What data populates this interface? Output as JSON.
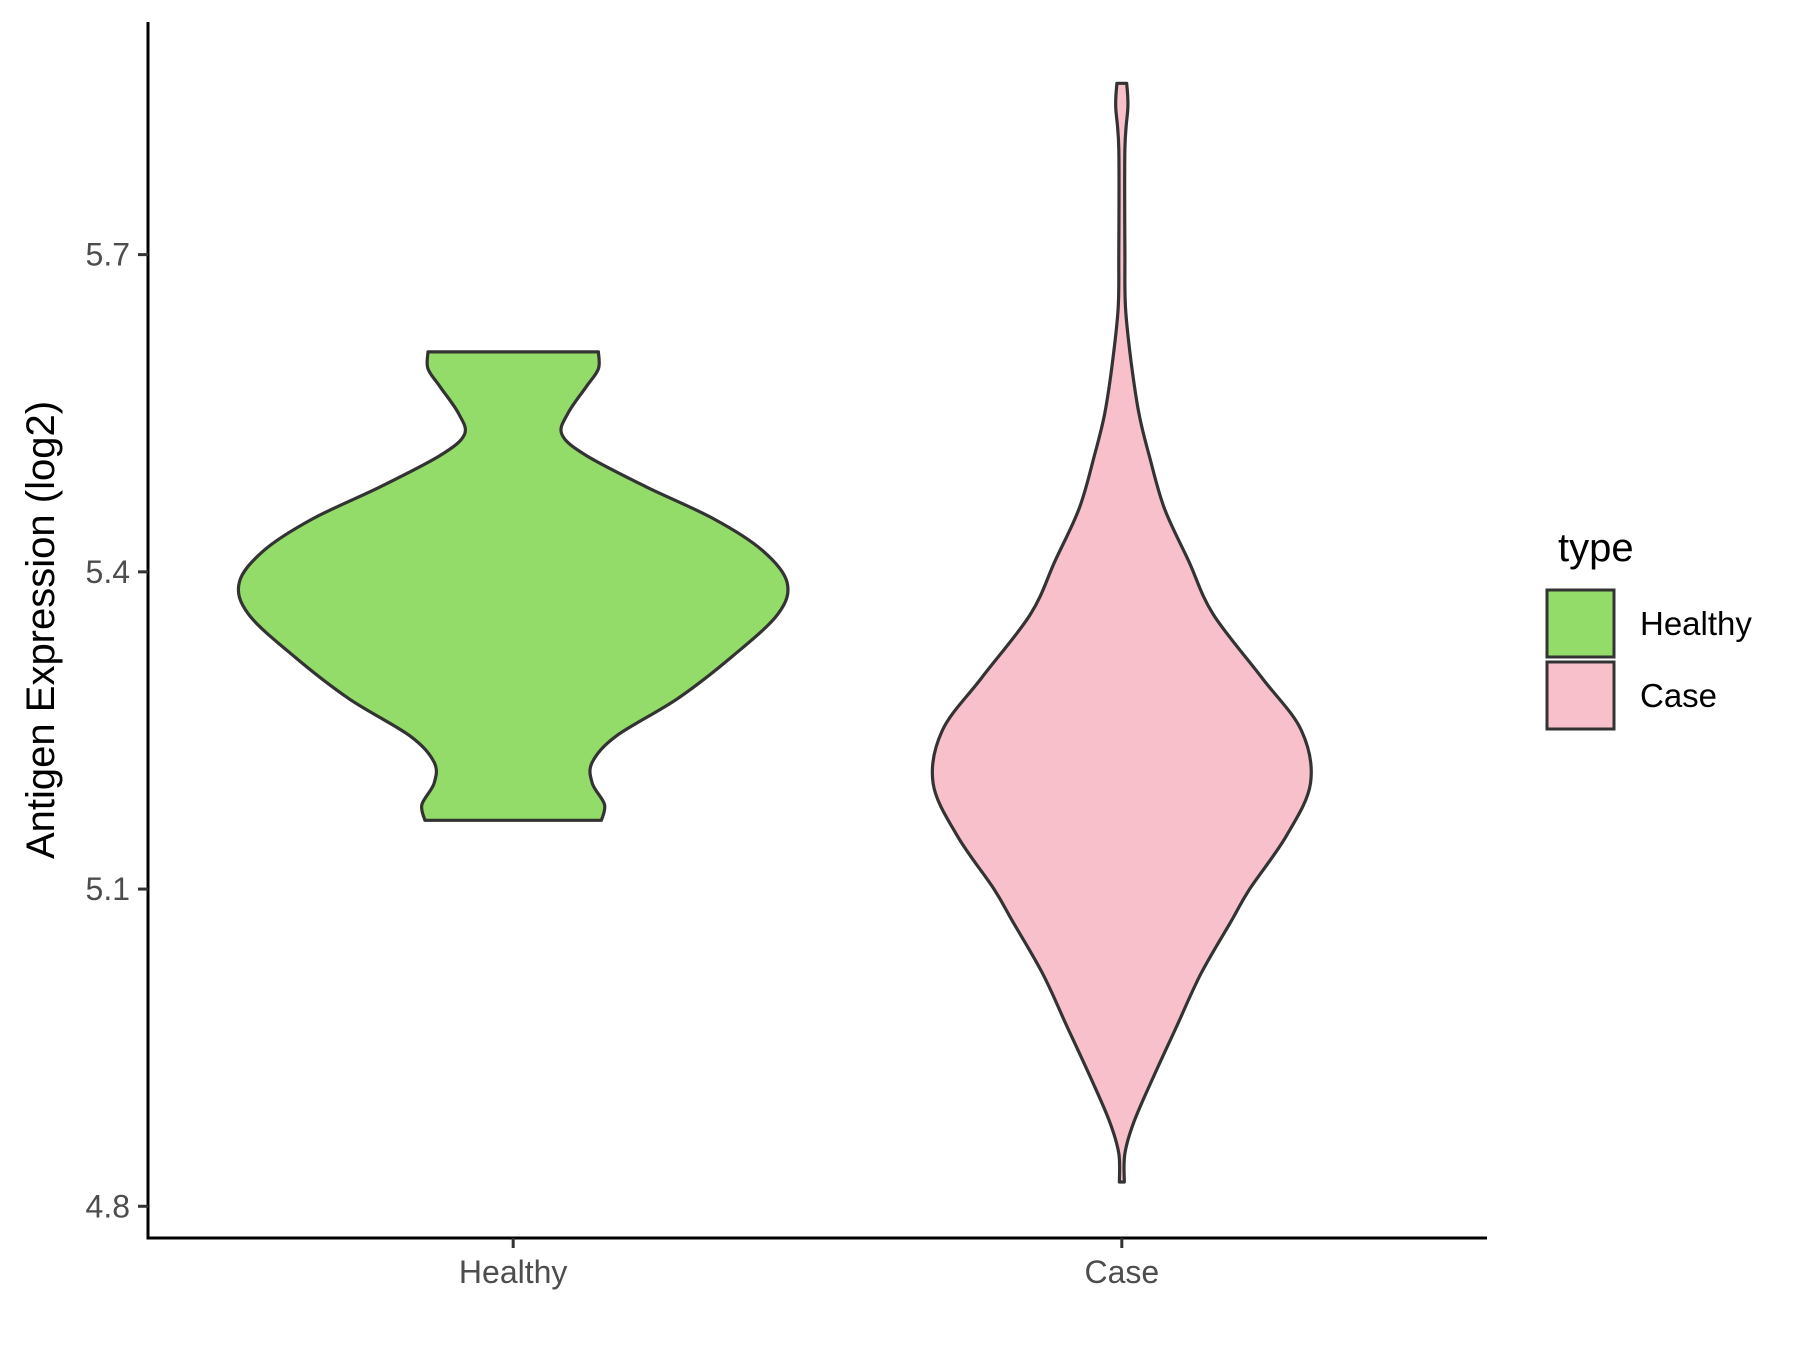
{
  "chart_data": {
    "type": "violin",
    "title": "",
    "xlabel": "",
    "ylabel": "Antigen Expression (log2)",
    "ylim": [
      4.77,
      5.92
    ],
    "yticks": [
      4.8,
      5.1,
      5.4,
      5.7
    ],
    "ytick_labels": [
      "4.8",
      "5.1",
      "5.4",
      "5.7"
    ],
    "categories": [
      "Healthy",
      "Case"
    ],
    "grid": false,
    "legend": {
      "title": "type",
      "placement": "right",
      "entries": [
        "Healthy",
        "Case"
      ]
    },
    "series": [
      {
        "name": "Healthy",
        "color": "#93dc6a",
        "range": [
          5.165,
          5.608
        ],
        "max_half_width": 0.45,
        "density": [
          [
            5.165,
            0.145
          ],
          [
            5.18,
            0.15
          ],
          [
            5.2,
            0.13
          ],
          [
            5.22,
            0.13
          ],
          [
            5.245,
            0.17
          ],
          [
            5.28,
            0.27
          ],
          [
            5.32,
            0.36
          ],
          [
            5.36,
            0.435
          ],
          [
            5.39,
            0.45
          ],
          [
            5.42,
            0.41
          ],
          [
            5.45,
            0.33
          ],
          [
            5.48,
            0.22
          ],
          [
            5.51,
            0.12
          ],
          [
            5.53,
            0.08
          ],
          [
            5.55,
            0.09
          ],
          [
            5.575,
            0.12
          ],
          [
            5.592,
            0.14
          ],
          [
            5.608,
            0.14
          ]
        ]
      },
      {
        "name": "Case",
        "color": "#f7c0cb",
        "range": [
          4.823,
          5.862
        ],
        "max_half_width": 0.31,
        "density": [
          [
            4.823,
            0.004
          ],
          [
            4.85,
            0.005
          ],
          [
            4.88,
            0.02
          ],
          [
            4.92,
            0.05
          ],
          [
            4.97,
            0.09
          ],
          [
            5.02,
            0.13
          ],
          [
            5.07,
            0.18
          ],
          [
            5.1,
            0.21
          ],
          [
            5.15,
            0.27
          ],
          [
            5.2,
            0.31
          ],
          [
            5.25,
            0.295
          ],
          [
            5.3,
            0.23
          ],
          [
            5.36,
            0.15
          ],
          [
            5.41,
            0.11
          ],
          [
            5.46,
            0.07
          ],
          [
            5.51,
            0.045
          ],
          [
            5.55,
            0.028
          ],
          [
            5.6,
            0.015
          ],
          [
            5.65,
            0.006
          ],
          [
            5.7,
            0.005
          ],
          [
            5.8,
            0.005
          ],
          [
            5.84,
            0.01
          ],
          [
            5.862,
            0.008
          ]
        ]
      }
    ]
  }
}
